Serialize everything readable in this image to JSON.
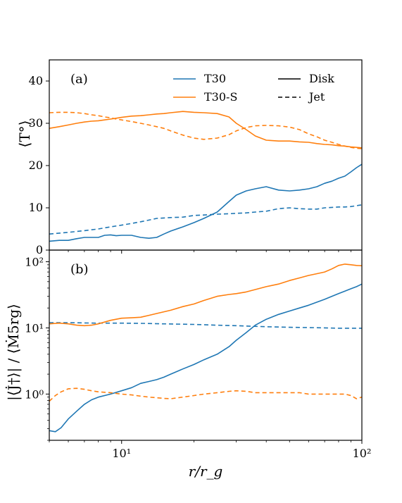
{
  "colors": {
    "T30": "#1f77b4",
    "T30-S": "#ff7f0e",
    "axis": "#000000"
  },
  "legend": [
    {
      "label": "T30",
      "kind": "color",
      "color": "#1f77b4"
    },
    {
      "label": "Disk",
      "kind": "style",
      "dash": "none"
    },
    {
      "label": "T30-S",
      "kind": "color",
      "color": "#ff7f0e"
    },
    {
      "label": "Jet",
      "kind": "style",
      "dash": "6,4"
    }
  ],
  "xlabel": "r/r_g",
  "chart_data": [
    {
      "type": "line",
      "panel": "(a)",
      "ylabel": "⟨T°⟩",
      "xscale": "log",
      "xlim": [
        5,
        100
      ],
      "ylim": [
        0,
        45
      ],
      "yticks": [
        0,
        10,
        20,
        30,
        40
      ],
      "grid": false,
      "legend_placement": "top-right",
      "series": [
        {
          "name": "T30",
          "style": "Disk",
          "color": "#1f77b4",
          "x": [
            5,
            5.5,
            6,
            6.5,
            7,
            7.5,
            8,
            8.5,
            9,
            9.5,
            10,
            11,
            12,
            13,
            14,
            15,
            16,
            18,
            20,
            22,
            25,
            28,
            30,
            33,
            36,
            40,
            45,
            50,
            55,
            60,
            65,
            70,
            75,
            80,
            85,
            90,
            95,
            100
          ],
          "y": [
            2.1,
            2.3,
            2.3,
            2.7,
            3.0,
            3.0,
            3.0,
            3.5,
            3.6,
            3.4,
            3.5,
            3.5,
            3.0,
            2.8,
            3.0,
            3.8,
            4.5,
            5.5,
            6.5,
            7.5,
            9.0,
            11.5,
            13.0,
            14.0,
            14.5,
            15.0,
            14.2,
            14.0,
            14.2,
            14.5,
            15.0,
            15.8,
            16.3,
            17.0,
            17.5,
            18.5,
            19.5,
            20.3
          ]
        },
        {
          "name": "T30",
          "style": "Jet",
          "color": "#1f77b4",
          "x": [
            5,
            6,
            7,
            8,
            9,
            10,
            11,
            12,
            13,
            14,
            15,
            16,
            18,
            20,
            22,
            25,
            28,
            30,
            33,
            36,
            40,
            45,
            50,
            55,
            60,
            65,
            70,
            75,
            80,
            85,
            90,
            95,
            100
          ],
          "y": [
            3.8,
            4.2,
            4.6,
            5.0,
            5.5,
            5.9,
            6.3,
            6.7,
            7.1,
            7.5,
            7.6,
            7.7,
            7.8,
            8.2,
            8.3,
            8.5,
            8.6,
            8.7,
            8.8,
            9.0,
            9.2,
            9.8,
            10.0,
            9.8,
            9.7,
            9.7,
            10.0,
            10.1,
            10.2,
            10.2,
            10.3,
            10.5,
            10.7
          ]
        },
        {
          "name": "T30-S",
          "style": "Disk",
          "color": "#ff7f0e",
          "x": [
            5,
            5.5,
            6,
            6.5,
            7,
            7.5,
            8,
            8.5,
            9,
            9.5,
            10,
            11,
            12,
            13,
            14,
            15,
            16,
            18,
            20,
            22,
            25,
            28,
            30,
            33,
            36,
            40,
            45,
            50,
            55,
            60,
            65,
            70,
            75,
            80,
            85,
            90,
            95,
            100
          ],
          "y": [
            28.8,
            29.2,
            29.6,
            30.0,
            30.3,
            30.5,
            30.6,
            30.8,
            31.0,
            31.2,
            31.4,
            31.7,
            31.8,
            32.0,
            32.2,
            32.3,
            32.5,
            32.8,
            32.6,
            32.5,
            32.3,
            31.5,
            30.0,
            28.5,
            27.0,
            26.0,
            25.8,
            25.8,
            25.6,
            25.5,
            25.2,
            25.0,
            24.9,
            24.7,
            24.6,
            24.4,
            24.3,
            24.2
          ]
        },
        {
          "name": "T30-S",
          "style": "Jet",
          "color": "#ff7f0e",
          "x": [
            5,
            5.5,
            6,
            6.5,
            7,
            7.5,
            8,
            8.5,
            9,
            9.5,
            10,
            11,
            12,
            13,
            14,
            15,
            16,
            18,
            20,
            22,
            25,
            28,
            30,
            33,
            36,
            40,
            45,
            50,
            55,
            60,
            65,
            70,
            75,
            80,
            85,
            90,
            95,
            100
          ],
          "y": [
            32.5,
            32.6,
            32.6,
            32.5,
            32.3,
            32.0,
            31.8,
            31.5,
            31.3,
            31.0,
            30.8,
            30.4,
            30.0,
            29.6,
            29.2,
            28.8,
            28.2,
            27.2,
            26.5,
            26.2,
            26.5,
            27.3,
            28.2,
            29.0,
            29.4,
            29.5,
            29.4,
            29.1,
            28.5,
            27.5,
            26.8,
            26.0,
            25.5,
            25.0,
            24.6,
            24.3,
            24.1,
            24.0
          ]
        }
      ]
    },
    {
      "type": "line",
      "panel": "(b)",
      "ylabel": "|⟨J̇†⟩| / ⟨Ṁ5rg⟩",
      "xscale": "log",
      "yscale": "log",
      "xlim": [
        5,
        100
      ],
      "ylim": [
        0.2,
        150
      ],
      "yticks": [
        1,
        10,
        100
      ],
      "yticklabels": [
        "10⁰",
        "10¹",
        "10²"
      ],
      "xticks": [
        10,
        100
      ],
      "xticklabels": [
        "10¹",
        "10²"
      ],
      "grid": false,
      "series": [
        {
          "name": "T30",
          "style": "Disk",
          "color": "#1f77b4",
          "x": [
            5,
            5.3,
            5.6,
            6,
            6.5,
            7,
            7.5,
            8,
            9,
            10,
            11,
            12,
            13,
            14,
            15,
            16,
            18,
            20,
            22,
            25,
            28,
            30,
            33,
            36,
            40,
            45,
            50,
            55,
            60,
            65,
            70,
            75,
            80,
            85,
            90,
            95,
            100
          ],
          "y": [
            0.28,
            0.27,
            0.31,
            0.42,
            0.55,
            0.7,
            0.82,
            0.9,
            1.0,
            1.12,
            1.25,
            1.45,
            1.55,
            1.65,
            1.8,
            2.0,
            2.4,
            2.8,
            3.3,
            4.0,
            5.2,
            6.5,
            8.5,
            11.0,
            13.5,
            16.0,
            18.0,
            20.0,
            22.0,
            24.5,
            27.0,
            30.0,
            33.0,
            36.0,
            39.0,
            42.0,
            46.0
          ]
        },
        {
          "name": "T30",
          "style": "Jet",
          "color": "#1f77b4",
          "x": [
            5,
            6,
            7,
            8,
            10,
            12,
            15,
            20,
            25,
            30,
            40,
            50,
            60,
            70,
            80,
            90,
            100
          ],
          "y": [
            12.0,
            12.0,
            11.9,
            11.8,
            11.8,
            11.7,
            11.5,
            11.3,
            11.0,
            10.8,
            10.4,
            10.2,
            10.1,
            10.0,
            9.9,
            9.9,
            9.9
          ]
        },
        {
          "name": "T30-S",
          "style": "Disk",
          "color": "#ff7f0e",
          "x": [
            5,
            5.5,
            6,
            6.5,
            7,
            7.5,
            8,
            9,
            10,
            11,
            12,
            13,
            14,
            15,
            16,
            18,
            20,
            22,
            25,
            28,
            30,
            33,
            36,
            40,
            45,
            50,
            55,
            60,
            65,
            70,
            75,
            80,
            85,
            90,
            95,
            100
          ],
          "y": [
            11.5,
            11.8,
            11.5,
            11.0,
            10.8,
            11.0,
            11.5,
            13.0,
            14.0,
            14.2,
            14.5,
            15.5,
            16.5,
            17.5,
            18.5,
            21.0,
            23.0,
            26.0,
            30.0,
            32.0,
            33.0,
            35.0,
            38.0,
            42.0,
            46.0,
            52.0,
            57.0,
            62.0,
            66.0,
            70.0,
            78.0,
            88.0,
            92.0,
            90.0,
            88.0,
            87.0
          ]
        },
        {
          "name": "T30-S",
          "style": "Jet",
          "color": "#ff7f0e",
          "x": [
            5,
            5.3,
            5.6,
            6,
            6.5,
            7,
            7.5,
            8,
            9,
            10,
            11,
            12,
            13,
            14,
            15,
            16,
            18,
            20,
            22,
            25,
            28,
            30,
            33,
            36,
            40,
            45,
            50,
            55,
            60,
            65,
            70,
            75,
            80,
            85,
            90,
            95,
            100
          ],
          "y": [
            0.78,
            0.95,
            1.08,
            1.2,
            1.22,
            1.18,
            1.12,
            1.08,
            1.05,
            1.0,
            0.97,
            0.93,
            0.9,
            0.88,
            0.86,
            0.85,
            0.9,
            0.95,
            1.0,
            1.05,
            1.1,
            1.12,
            1.1,
            1.05,
            1.05,
            1.05,
            1.05,
            1.05,
            1.0,
            1.0,
            1.0,
            1.0,
            1.0,
            1.0,
            0.95,
            0.85,
            0.9
          ]
        }
      ]
    }
  ]
}
